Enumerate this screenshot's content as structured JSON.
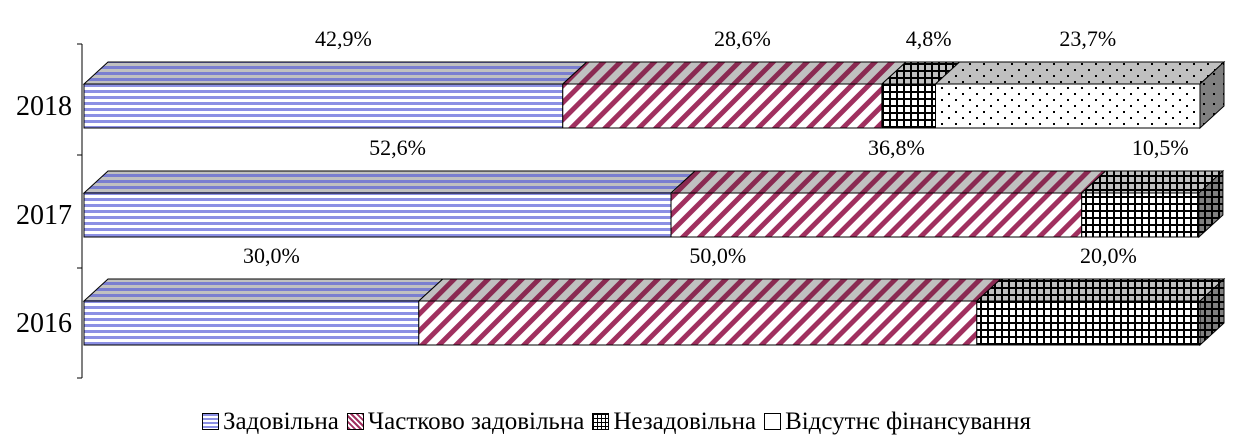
{
  "chart_data": {
    "type": "bar",
    "orientation": "horizontal",
    "stacked": "percent",
    "three_d": true,
    "categories": [
      "2018",
      "2017",
      "2016"
    ],
    "series": [
      {
        "name": "Задовільна",
        "values": [
          42.9,
          52.6,
          30.0
        ],
        "labels": [
          "42,9%",
          "52,6%",
          "30,0%"
        ],
        "pattern": "horizontal-stripes",
        "color": "#8c90e4"
      },
      {
        "name": "Частково задовільна",
        "values": [
          28.6,
          36.8,
          50.0
        ],
        "labels": [
          "28,6%",
          "36,8%",
          "50,0%"
        ],
        "pattern": "diagonal-stripes",
        "color": "#a0305f"
      },
      {
        "name": "Незадовільна",
        "values": [
          4.8,
          10.5,
          20.0
        ],
        "labels": [
          "4,8%",
          "10,5%",
          "20,0%"
        ],
        "pattern": "grid",
        "color": "#000000"
      },
      {
        "name": "Відсутнє фінансування",
        "values": [
          23.7,
          0,
          0
        ],
        "labels": [
          "23,7%",
          "",
          ""
        ],
        "pattern": "dots",
        "color": "#000000"
      }
    ],
    "xlim": [
      0,
      100
    ],
    "grid": false,
    "legend": "bottom"
  }
}
